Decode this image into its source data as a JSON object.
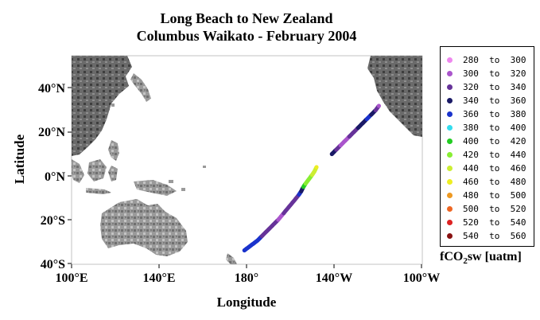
{
  "title": {
    "line1": "Long Beach to New Zealand",
    "line2": "Columbus Waikato - February 2004"
  },
  "axes": {
    "xlabel": "Longitude",
    "ylabel": "Latitude",
    "x_ticks": [
      "100°E",
      "140°E",
      "180°",
      "140°W",
      "100°W"
    ],
    "y_ticks": [
      "40°N",
      "20°N",
      "0°N",
      "20°S",
      "40°S"
    ],
    "lon_range": [
      100,
      260
    ],
    "lat_range": [
      -40,
      55
    ]
  },
  "legend": {
    "title": "fCO",
    "title_sub": "2",
    "title_rest": "sw [uatm]",
    "items": [
      {
        "label": "280  to  300",
        "color": "#ee88ee"
      },
      {
        "label": "300  to  320",
        "color": "#aa55cc"
      },
      {
        "label": "320  to  340",
        "color": "#663399"
      },
      {
        "label": "340  to  360",
        "color": "#1a1a66"
      },
      {
        "label": "360  to  380",
        "color": "#1a33cc"
      },
      {
        "label": "380  to  400",
        "color": "#33ddee"
      },
      {
        "label": "400  to  420",
        "color": "#22cc22"
      },
      {
        "label": "420  to  440",
        "color": "#88ee33"
      },
      {
        "label": "440  to  460",
        "color": "#ccee33"
      },
      {
        "label": "460  to  480",
        "color": "#eeee22"
      },
      {
        "label": "480  to  500",
        "color": "#ee9922"
      },
      {
        "label": "500  to  520",
        "color": "#ee6622"
      },
      {
        "label": "520  to  540",
        "color": "#dd2222"
      },
      {
        "label": "540  to  560",
        "color": "#881111"
      }
    ]
  },
  "track": [
    {
      "lon": 179.0,
      "lat": -34.0,
      "color": "#1a33cc"
    },
    {
      "lon": 181.0,
      "lat": -32.5,
      "color": "#1a33cc"
    },
    {
      "lon": 183.0,
      "lat": -31.0,
      "color": "#1a33cc"
    },
    {
      "lon": 185.0,
      "lat": -29.5,
      "color": "#1a33cc"
    },
    {
      "lon": 187.0,
      "lat": -27.5,
      "color": "#663399"
    },
    {
      "lon": 189.5,
      "lat": -25.0,
      "color": "#663399"
    },
    {
      "lon": 192.0,
      "lat": -22.5,
      "color": "#663399"
    },
    {
      "lon": 194.5,
      "lat": -20.0,
      "color": "#aa55cc"
    },
    {
      "lon": 197.0,
      "lat": -17.0,
      "color": "#663399"
    },
    {
      "lon": 199.5,
      "lat": -14.0,
      "color": "#663399"
    },
    {
      "lon": 202.0,
      "lat": -11.0,
      "color": "#663399"
    },
    {
      "lon": 204.0,
      "lat": -8.5,
      "color": "#1a33cc"
    },
    {
      "lon": 205.0,
      "lat": -7.0,
      "color": "#1a1a66"
    },
    {
      "lon": 206.0,
      "lat": -5.0,
      "color": "#22cc22"
    },
    {
      "lon": 207.0,
      "lat": -3.5,
      "color": "#88ee33"
    },
    {
      "lon": 208.5,
      "lat": -1.5,
      "color": "#88ee33"
    },
    {
      "lon": 210.0,
      "lat": 0.5,
      "color": "#ccee33"
    },
    {
      "lon": 211.0,
      "lat": 2.0,
      "color": "#ccee33"
    },
    {
      "lon": 212.0,
      "lat": 4.0,
      "color": "#eeee22"
    },
    {
      "lon": 219.0,
      "lat": 10.0,
      "color": "#1a1a66"
    },
    {
      "lon": 221.0,
      "lat": 12.0,
      "color": "#663399"
    },
    {
      "lon": 223.0,
      "lat": 14.0,
      "color": "#aa55cc"
    },
    {
      "lon": 225.0,
      "lat": 16.0,
      "color": "#aa55cc"
    },
    {
      "lon": 227.0,
      "lat": 18.0,
      "color": "#663399"
    },
    {
      "lon": 229.0,
      "lat": 20.0,
      "color": "#663399"
    },
    {
      "lon": 231.0,
      "lat": 22.0,
      "color": "#1a1a66"
    },
    {
      "lon": 233.0,
      "lat": 24.0,
      "color": "#1a1a66"
    },
    {
      "lon": 235.0,
      "lat": 26.0,
      "color": "#1a33cc"
    },
    {
      "lon": 237.0,
      "lat": 28.0,
      "color": "#1a1a66"
    },
    {
      "lon": 239.0,
      "lat": 30.0,
      "color": "#663399"
    },
    {
      "lon": 240.5,
      "lat": 32.0,
      "color": "#aa55cc"
    }
  ]
}
